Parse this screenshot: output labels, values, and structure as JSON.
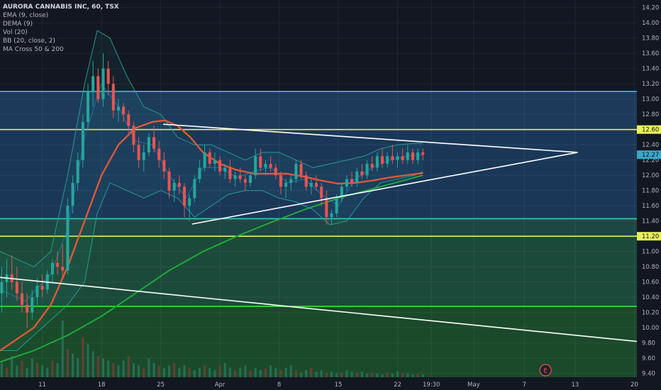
{
  "chart_data": {
    "type": "candlestick",
    "symbol": "AURORA CANNABIS INC, 60, TSX",
    "indicators": [
      "EMA (9, close)",
      "DEMA (9)",
      "Vol (20)",
      "BB (20, close, 2)",
      "MA Cross 50 & 200"
    ],
    "x_ticks": [
      {
        "label": "11",
        "day": 11
      },
      {
        "label": "18",
        "day": 18
      },
      {
        "label": "25",
        "day": 25
      },
      {
        "label": "Apr",
        "day": 32
      },
      {
        "label": "8",
        "day": 39
      },
      {
        "label": "15",
        "day": 46
      },
      {
        "label": "22",
        "day": 53
      },
      {
        "label": "19:30",
        "day": 57
      },
      {
        "label": "May",
        "day": 62
      },
      {
        "label": "7",
        "day": 68
      },
      {
        "label": "13",
        "day": 74
      },
      {
        "label": "20",
        "day": 81
      }
    ],
    "xlim": [
      6,
      81.3
    ],
    "y_ticks": [
      "14.20",
      "14.00",
      "13.80",
      "13.60",
      "13.40",
      "13.20",
      "13.00",
      "12.80",
      "12.60",
      "12.40",
      "12.20",
      "12.00",
      "11.80",
      "11.60",
      "11.40",
      "11.20",
      "11.00",
      "10.80",
      "10.60",
      "10.40",
      "10.20",
      "10.00",
      "9.80",
      "9.60",
      "9.40"
    ],
    "ylim": [
      9.35,
      14.3
    ],
    "price_markers": [
      {
        "label": "12.60",
        "value": 12.6,
        "color": "#e8f05c"
      },
      {
        "label": "12.27",
        "value": 12.27,
        "color": "#3aa6c9"
      },
      {
        "label": "11.20",
        "value": 11.2,
        "color": "#e8f05c"
      }
    ],
    "zones": [
      {
        "from": 12.6,
        "to": 13.1,
        "color": "#1d3a5a"
      },
      {
        "from": 11.43,
        "to": 12.6,
        "color": "#1b3758"
      },
      {
        "from": 11.2,
        "to": 11.43,
        "color": "#1d4742"
      },
      {
        "from": 10.28,
        "to": 11.2,
        "color": "#1c4a3a"
      },
      {
        "from": 9.35,
        "to": 10.28,
        "color": "#1a4a2a"
      }
    ],
    "horizontal_lines": [
      {
        "value": 13.1,
        "color": "#4fb6e0"
      },
      {
        "value": 12.6,
        "color": "#e8f05c"
      },
      {
        "value": 11.43,
        "color": "#2ed3b0"
      },
      {
        "value": 11.2,
        "color": "#e8f05c"
      },
      {
        "value": 10.28,
        "color": "#37e83a"
      }
    ],
    "trendlines": [
      {
        "from": [
          6,
          10.66
        ],
        "to": [
          81.3,
          9.82
        ],
        "color": "#ffffff"
      },
      {
        "from": [
          28.7,
          11.36
        ],
        "to": [
          74.3,
          12.3
        ],
        "color": "#ffffff"
      },
      {
        "from": [
          25.3,
          12.67
        ],
        "to": [
          74.3,
          12.3
        ],
        "color": "#ffffff"
      }
    ],
    "candles": [
      {
        "day": 6.2,
        "o": 10.45,
        "h": 10.8,
        "l": 10.2,
        "c": 10.6
      },
      {
        "day": 6.8,
        "o": 10.6,
        "h": 10.9,
        "l": 10.4,
        "c": 10.7
      },
      {
        "day": 7.4,
        "o": 10.7,
        "h": 10.95,
        "l": 10.5,
        "c": 10.6
      },
      {
        "day": 8.0,
        "o": 10.6,
        "h": 10.8,
        "l": 10.35,
        "c": 10.45
      },
      {
        "day": 8.6,
        "o": 10.45,
        "h": 10.6,
        "l": 10.2,
        "c": 10.3
      },
      {
        "day": 9.2,
        "o": 10.3,
        "h": 10.45,
        "l": 10.0,
        "c": 10.2
      },
      {
        "day": 9.8,
        "o": 10.2,
        "h": 10.5,
        "l": 10.1,
        "c": 10.4
      },
      {
        "day": 10.4,
        "o": 10.4,
        "h": 10.65,
        "l": 10.3,
        "c": 10.55
      },
      {
        "day": 11.0,
        "o": 10.55,
        "h": 10.7,
        "l": 10.4,
        "c": 10.5
      },
      {
        "day": 11.6,
        "o": 10.5,
        "h": 10.75,
        "l": 10.45,
        "c": 10.7
      },
      {
        "day": 12.2,
        "o": 10.7,
        "h": 10.9,
        "l": 10.6,
        "c": 10.85
      },
      {
        "day": 12.8,
        "o": 10.85,
        "h": 11.0,
        "l": 10.7,
        "c": 10.8
      },
      {
        "day": 13.4,
        "o": 10.8,
        "h": 11.1,
        "l": 10.65,
        "c": 10.75
      },
      {
        "day": 14.0,
        "o": 10.75,
        "h": 11.7,
        "l": 10.7,
        "c": 11.6
      },
      {
        "day": 14.6,
        "o": 11.6,
        "h": 12.0,
        "l": 11.5,
        "c": 11.9
      },
      {
        "day": 15.2,
        "o": 11.9,
        "h": 12.3,
        "l": 11.8,
        "c": 12.2
      },
      {
        "day": 15.8,
        "o": 12.2,
        "h": 12.8,
        "l": 12.1,
        "c": 12.7
      },
      {
        "day": 16.4,
        "o": 12.7,
        "h": 13.2,
        "l": 12.6,
        "c": 13.1
      },
      {
        "day": 17.0,
        "o": 13.1,
        "h": 13.5,
        "l": 12.9,
        "c": 13.3
      },
      {
        "day": 17.6,
        "o": 13.3,
        "h": 13.4,
        "l": 12.95,
        "c": 13.0
      },
      {
        "day": 18.2,
        "o": 13.0,
        "h": 13.6,
        "l": 12.9,
        "c": 13.4
      },
      {
        "day": 18.8,
        "o": 13.4,
        "h": 13.5,
        "l": 13.05,
        "c": 13.2
      },
      {
        "day": 19.4,
        "o": 13.2,
        "h": 13.3,
        "l": 12.75,
        "c": 12.85
      },
      {
        "day": 20.0,
        "o": 12.85,
        "h": 13.0,
        "l": 12.7,
        "c": 12.9
      },
      {
        "day": 20.6,
        "o": 12.9,
        "h": 12.95,
        "l": 12.7,
        "c": 12.8
      },
      {
        "day": 21.2,
        "o": 12.8,
        "h": 12.85,
        "l": 12.55,
        "c": 12.65
      },
      {
        "day": 21.8,
        "o": 12.65,
        "h": 12.7,
        "l": 12.3,
        "c": 12.4
      },
      {
        "day": 22.4,
        "o": 12.4,
        "h": 12.5,
        "l": 12.1,
        "c": 12.2
      },
      {
        "day": 23.0,
        "o": 12.2,
        "h": 12.4,
        "l": 12.05,
        "c": 12.3
      },
      {
        "day": 23.6,
        "o": 12.3,
        "h": 12.55,
        "l": 12.25,
        "c": 12.5
      },
      {
        "day": 24.2,
        "o": 12.5,
        "h": 12.65,
        "l": 12.3,
        "c": 12.35
      },
      {
        "day": 24.8,
        "o": 12.35,
        "h": 12.45,
        "l": 12.1,
        "c": 12.2
      },
      {
        "day": 25.4,
        "o": 12.2,
        "h": 12.3,
        "l": 11.95,
        "c": 12.05
      },
      {
        "day": 26.0,
        "o": 12.05,
        "h": 12.1,
        "l": 11.7,
        "c": 11.8
      },
      {
        "day": 26.6,
        "o": 11.8,
        "h": 11.95,
        "l": 11.65,
        "c": 11.9
      },
      {
        "day": 27.2,
        "o": 11.9,
        "h": 12.0,
        "l": 11.75,
        "c": 11.85
      },
      {
        "day": 27.8,
        "o": 11.85,
        "h": 11.9,
        "l": 11.45,
        "c": 11.6
      },
      {
        "day": 28.4,
        "o": 11.6,
        "h": 11.75,
        "l": 11.4,
        "c": 11.7
      },
      {
        "day": 29.0,
        "o": 11.7,
        "h": 12.0,
        "l": 11.65,
        "c": 11.95
      },
      {
        "day": 29.6,
        "o": 11.95,
        "h": 12.2,
        "l": 11.9,
        "c": 12.1
      },
      {
        "day": 30.2,
        "o": 12.1,
        "h": 12.4,
        "l": 12.05,
        "c": 12.3
      },
      {
        "day": 30.8,
        "o": 12.3,
        "h": 12.35,
        "l": 12.1,
        "c": 12.15
      },
      {
        "day": 31.4,
        "o": 12.15,
        "h": 12.3,
        "l": 12.05,
        "c": 12.2
      },
      {
        "day": 32.0,
        "o": 12.2,
        "h": 12.25,
        "l": 12.0,
        "c": 12.05
      },
      {
        "day": 32.6,
        "o": 12.05,
        "h": 12.15,
        "l": 11.95,
        "c": 12.1
      },
      {
        "day": 33.2,
        "o": 12.1,
        "h": 12.2,
        "l": 11.9,
        "c": 11.95
      },
      {
        "day": 33.8,
        "o": 11.95,
        "h": 12.05,
        "l": 11.85,
        "c": 12.0
      },
      {
        "day": 34.4,
        "o": 12.0,
        "h": 12.1,
        "l": 11.9,
        "c": 11.95
      },
      {
        "day": 35.0,
        "o": 11.95,
        "h": 12.0,
        "l": 11.8,
        "c": 11.9
      },
      {
        "day": 35.6,
        "o": 11.9,
        "h": 12.05,
        "l": 11.85,
        "c": 12.0
      },
      {
        "day": 36.2,
        "o": 12.0,
        "h": 12.35,
        "l": 11.95,
        "c": 12.25
      },
      {
        "day": 36.8,
        "o": 12.25,
        "h": 12.35,
        "l": 12.05,
        "c": 12.1
      },
      {
        "day": 37.4,
        "o": 12.1,
        "h": 12.2,
        "l": 12.0,
        "c": 12.15
      },
      {
        "day": 38.0,
        "o": 12.15,
        "h": 12.25,
        "l": 12.05,
        "c": 12.1
      },
      {
        "day": 38.6,
        "o": 12.1,
        "h": 12.15,
        "l": 11.95,
        "c": 12.0
      },
      {
        "day": 39.2,
        "o": 12.0,
        "h": 12.05,
        "l": 11.75,
        "c": 11.85
      },
      {
        "day": 39.8,
        "o": 11.85,
        "h": 11.95,
        "l": 11.7,
        "c": 11.9
      },
      {
        "day": 40.4,
        "o": 11.9,
        "h": 12.0,
        "l": 11.8,
        "c": 11.95
      },
      {
        "day": 41.0,
        "o": 11.95,
        "h": 12.2,
        "l": 11.9,
        "c": 12.15
      },
      {
        "day": 41.6,
        "o": 12.15,
        "h": 12.2,
        "l": 11.95,
        "c": 12.0
      },
      {
        "day": 42.2,
        "o": 12.0,
        "h": 12.05,
        "l": 11.8,
        "c": 11.85
      },
      {
        "day": 42.8,
        "o": 11.85,
        "h": 11.95,
        "l": 11.75,
        "c": 11.9
      },
      {
        "day": 43.4,
        "o": 11.9,
        "h": 12.0,
        "l": 11.8,
        "c": 11.85
      },
      {
        "day": 44.0,
        "o": 11.85,
        "h": 11.9,
        "l": 11.6,
        "c": 11.7
      },
      {
        "day": 44.6,
        "o": 11.7,
        "h": 11.8,
        "l": 11.35,
        "c": 11.45
      },
      {
        "day": 45.2,
        "o": 11.45,
        "h": 11.55,
        "l": 11.35,
        "c": 11.5
      },
      {
        "day": 45.8,
        "o": 11.5,
        "h": 11.75,
        "l": 11.45,
        "c": 11.7
      },
      {
        "day": 46.4,
        "o": 11.7,
        "h": 11.9,
        "l": 11.65,
        "c": 11.85
      },
      {
        "day": 47.0,
        "o": 11.85,
        "h": 12.0,
        "l": 11.8,
        "c": 11.95
      },
      {
        "day": 47.6,
        "o": 11.95,
        "h": 12.05,
        "l": 11.85,
        "c": 11.9
      },
      {
        "day": 48.2,
        "o": 11.9,
        "h": 12.1,
        "l": 11.85,
        "c": 12.05
      },
      {
        "day": 48.8,
        "o": 12.05,
        "h": 12.15,
        "l": 11.95,
        "c": 12.0
      },
      {
        "day": 49.4,
        "o": 12.0,
        "h": 12.2,
        "l": 11.95,
        "c": 12.15
      },
      {
        "day": 50.0,
        "o": 12.15,
        "h": 12.25,
        "l": 12.05,
        "c": 12.1
      },
      {
        "day": 50.6,
        "o": 12.1,
        "h": 12.3,
        "l": 12.05,
        "c": 12.25
      },
      {
        "day": 51.2,
        "o": 12.25,
        "h": 12.35,
        "l": 12.1,
        "c": 12.15
      },
      {
        "day": 51.8,
        "o": 12.15,
        "h": 12.3,
        "l": 12.1,
        "c": 12.25
      },
      {
        "day": 52.4,
        "o": 12.25,
        "h": 12.4,
        "l": 12.15,
        "c": 12.2
      },
      {
        "day": 53.0,
        "o": 12.2,
        "h": 12.3,
        "l": 12.1,
        "c": 12.25
      },
      {
        "day": 53.6,
        "o": 12.25,
        "h": 12.35,
        "l": 12.15,
        "c": 12.2
      },
      {
        "day": 54.2,
        "o": 12.2,
        "h": 12.4,
        "l": 12.15,
        "c": 12.3
      },
      {
        "day": 54.8,
        "o": 12.3,
        "h": 12.35,
        "l": 12.15,
        "c": 12.2
      },
      {
        "day": 55.4,
        "o": 12.2,
        "h": 12.35,
        "l": 12.15,
        "c": 12.3
      },
      {
        "day": 56.0,
        "o": 12.3,
        "h": 12.35,
        "l": 12.2,
        "c": 12.27
      }
    ],
    "ema": [
      [
        6,
        10.5
      ],
      [
        9,
        10.35
      ],
      [
        12,
        10.7
      ],
      [
        14,
        11.3
      ],
      [
        16,
        12.5
      ],
      [
        18,
        13.2
      ],
      [
        20,
        12.9
      ],
      [
        22,
        12.45
      ],
      [
        24,
        12.4
      ],
      [
        26,
        12.0
      ],
      [
        28,
        11.7
      ],
      [
        30,
        12.1
      ],
      [
        32,
        12.1
      ],
      [
        34,
        11.97
      ],
      [
        36,
        12.05
      ],
      [
        38,
        12.1
      ],
      [
        40,
        11.9
      ],
      [
        42,
        11.95
      ],
      [
        44,
        11.75
      ],
      [
        46,
        11.6
      ],
      [
        48,
        11.95
      ],
      [
        50,
        12.1
      ],
      [
        52,
        12.2
      ],
      [
        54,
        12.25
      ],
      [
        56,
        12.27
      ]
    ],
    "ma50": [
      [
        6,
        9.7
      ],
      [
        8,
        9.85
      ],
      [
        10,
        10.0
      ],
      [
        12,
        10.3
      ],
      [
        14,
        10.8
      ],
      [
        16,
        11.4
      ],
      [
        18,
        12.0
      ],
      [
        20,
        12.4
      ],
      [
        22,
        12.62
      ],
      [
        24,
        12.7
      ],
      [
        25.5,
        12.72
      ],
      [
        27,
        12.65
      ],
      [
        28.5,
        12.5
      ],
      [
        30,
        12.3
      ],
      [
        32,
        12.15
      ],
      [
        34,
        12.07
      ],
      [
        36,
        12.02
      ],
      [
        38,
        12.02
      ],
      [
        40,
        12.02
      ],
      [
        42,
        11.98
      ],
      [
        44,
        11.93
      ],
      [
        46,
        11.89
      ],
      [
        48,
        11.9
      ],
      [
        50,
        11.93
      ],
      [
        52,
        11.97
      ],
      [
        54,
        12.0
      ],
      [
        56,
        12.03
      ]
    ],
    "ma200": [
      [
        6,
        9.55
      ],
      [
        10,
        9.7
      ],
      [
        14,
        9.9
      ],
      [
        18,
        10.15
      ],
      [
        22,
        10.45
      ],
      [
        26,
        10.75
      ],
      [
        30,
        11.0
      ],
      [
        34,
        11.2
      ],
      [
        38,
        11.38
      ],
      [
        42,
        11.55
      ],
      [
        46,
        11.7
      ],
      [
        50,
        11.82
      ],
      [
        54,
        11.94
      ],
      [
        56,
        12.0
      ]
    ],
    "bb_upper": [
      [
        6,
        11.0
      ],
      [
        8,
        10.9
      ],
      [
        10,
        10.8
      ],
      [
        12,
        11.0
      ],
      [
        14,
        12.0
      ],
      [
        16,
        13.2
      ],
      [
        17.5,
        13.9
      ],
      [
        19,
        13.8
      ],
      [
        21,
        13.3
      ],
      [
        23,
        12.9
      ],
      [
        25,
        12.8
      ],
      [
        27,
        12.5
      ],
      [
        29,
        12.4
      ],
      [
        31,
        12.4
      ],
      [
        33,
        12.3
      ],
      [
        35,
        12.2
      ],
      [
        37,
        12.3
      ],
      [
        39,
        12.3
      ],
      [
        41,
        12.2
      ],
      [
        43,
        12.1
      ],
      [
        45,
        12.15
      ],
      [
        47,
        12.2
      ],
      [
        49,
        12.25
      ],
      [
        51,
        12.35
      ],
      [
        53,
        12.4
      ],
      [
        55,
        12.42
      ],
      [
        56,
        12.42
      ]
    ],
    "bb_lower": [
      [
        6,
        9.7
      ],
      [
        8,
        9.7
      ],
      [
        10,
        9.9
      ],
      [
        12,
        10.1
      ],
      [
        14,
        10.3
      ],
      [
        16,
        10.6
      ],
      [
        17.5,
        11.5
      ],
      [
        19,
        11.9
      ],
      [
        21,
        11.8
      ],
      [
        23,
        11.7
      ],
      [
        25,
        11.8
      ],
      [
        27,
        11.7
      ],
      [
        29,
        11.45
      ],
      [
        31,
        11.6
      ],
      [
        33,
        11.75
      ],
      [
        35,
        11.8
      ],
      [
        37,
        11.8
      ],
      [
        39,
        11.7
      ],
      [
        41,
        11.65
      ],
      [
        43,
        11.55
      ],
      [
        45,
        11.35
      ],
      [
        47,
        11.4
      ],
      [
        49,
        11.7
      ],
      [
        51,
        11.9
      ],
      [
        53,
        11.95
      ],
      [
        55,
        12.0
      ],
      [
        56,
        12.05
      ]
    ],
    "volume": [
      30,
      20,
      45,
      25,
      35,
      20,
      40,
      30,
      25,
      20,
      35,
      30,
      120,
      60,
      50,
      40,
      85,
      70,
      55,
      45,
      40,
      35,
      30,
      25,
      35,
      45,
      30,
      25,
      20,
      40,
      30,
      25,
      20,
      25,
      30,
      20,
      25,
      20,
      15,
      20,
      25,
      20,
      15,
      25,
      30,
      20,
      15,
      20,
      25,
      15,
      20,
      15,
      18,
      25,
      20,
      15,
      20,
      25,
      15,
      10,
      15,
      20,
      12,
      15,
      10,
      12,
      8,
      10,
      15,
      12,
      10,
      12,
      8,
      10,
      8,
      6,
      10,
      8,
      12,
      10,
      8,
      6,
      8,
      6
    ],
    "earnings_marker": {
      "label": "E",
      "day": 70.5
    }
  }
}
